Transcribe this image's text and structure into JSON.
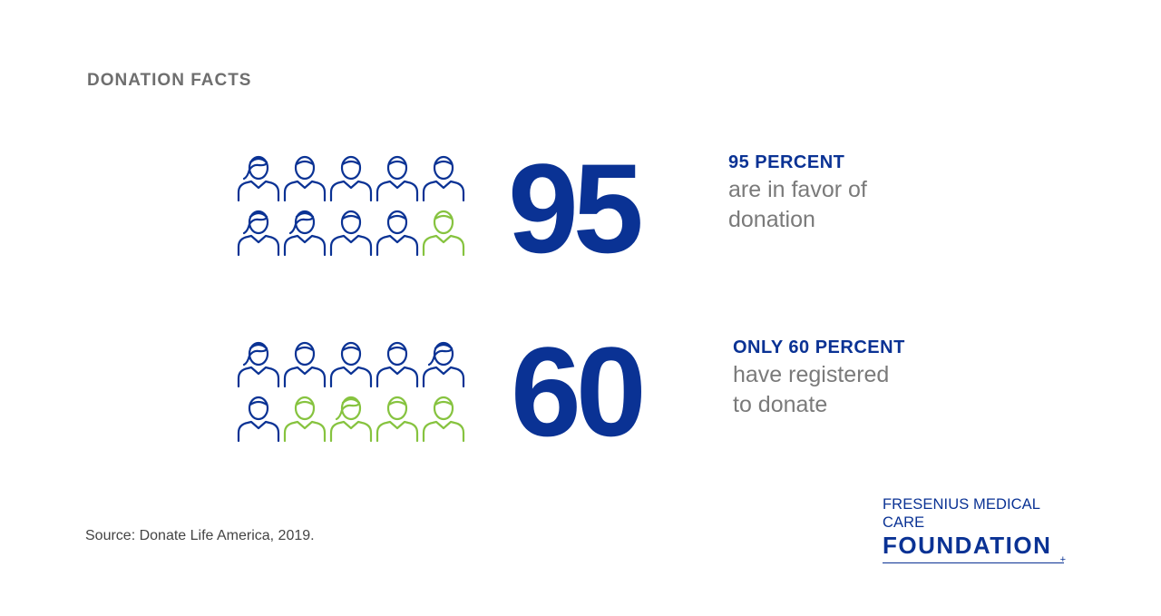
{
  "header": {
    "title": "DONATION FACTS"
  },
  "colors": {
    "blue": "#0a3294",
    "green": "#86c33f",
    "gray": "#7a7a7a"
  },
  "stats": [
    {
      "number": "95",
      "title": "95 PERCENT",
      "desc_line1": "are in favor of",
      "desc_line2": "donation",
      "icon_total": 10,
      "icon_blue": 9,
      "icons": [
        "woman-icon",
        "man-icon",
        "man-icon",
        "man-icon",
        "man-icon",
        "woman-icon",
        "woman-icon",
        "man-icon",
        "man-icon",
        "man-icon"
      ]
    },
    {
      "number": "60",
      "title": "ONLY 60 PERCENT",
      "desc_line1": "have registered",
      "desc_line2": "to donate",
      "icon_total": 10,
      "icon_blue": 6,
      "icons": [
        "woman-icon",
        "man-icon",
        "man-icon",
        "man-icon",
        "woman-icon",
        "man-icon",
        "man-icon",
        "woman-icon",
        "man-icon",
        "man-icon"
      ]
    }
  ],
  "footer": {
    "source": "Source: Donate Life America, 2019."
  },
  "logo": {
    "line1": "FRESENIUS MEDICAL CARE",
    "line2": "FOUNDATION",
    "plus": "+"
  }
}
